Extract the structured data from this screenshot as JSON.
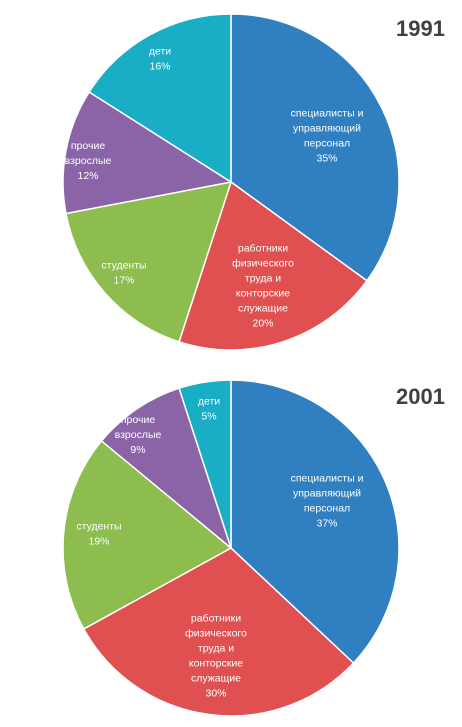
{
  "colors": {
    "specialists": "#2f7fc1",
    "workers": "#e05050",
    "students": "#8dbd4f",
    "other_adults": "#8a64a6",
    "children": "#1aaec6",
    "title": "#404040",
    "label": "#ffffff"
  },
  "chart_data": [
    {
      "type": "pie",
      "title": "1991",
      "slices": [
        {
          "label": "специалисты и управляющий персонал",
          "label_lines": [
            "специалисты и",
            "управляющий",
            "персонал"
          ],
          "value": 35,
          "value_text": "35%",
          "color_key": "specialists"
        },
        {
          "label": "работники физического труда и конторские служащие",
          "label_lines": [
            "работники",
            "физического",
            "труда и",
            "конторские",
            "служащие"
          ],
          "value": 20,
          "value_text": "20%",
          "color_key": "workers"
        },
        {
          "label": "студенты",
          "label_lines": [
            "студенты"
          ],
          "value": 17,
          "value_text": "17%",
          "color_key": "students"
        },
        {
          "label": "прочие взрослые",
          "label_lines": [
            "прочие",
            "взрослые"
          ],
          "value": 12,
          "value_text": "12%",
          "color_key": "other_adults"
        },
        {
          "label": "дети",
          "label_lines": [
            "дети"
          ],
          "value": 16,
          "value_text": "16%",
          "color_key": "children"
        }
      ]
    },
    {
      "type": "pie",
      "title": "2001",
      "slices": [
        {
          "label": "специалисты и управляющий персонал",
          "label_lines": [
            "специалисты и",
            "управляющий",
            "персонал"
          ],
          "value": 37,
          "value_text": "37%",
          "color_key": "specialists"
        },
        {
          "label": "работники физического труда и конторские служащие",
          "label_lines": [
            "работники",
            "физического",
            "труда и",
            "конторские",
            "служащие"
          ],
          "value": 30,
          "value_text": "30%",
          "color_key": "workers"
        },
        {
          "label": "студенты",
          "label_lines": [
            "студенты"
          ],
          "value": 19,
          "value_text": "19%",
          "color_key": "students"
        },
        {
          "label": "прочие взрослые",
          "label_lines": [
            "прочие",
            "взрослые"
          ],
          "value": 9,
          "value_text": "9%",
          "color_key": "other_adults"
        },
        {
          "label": "дети",
          "label_lines": [
            "дети"
          ],
          "value": 5,
          "value_text": "5%",
          "color_key": "children"
        }
      ]
    }
  ]
}
